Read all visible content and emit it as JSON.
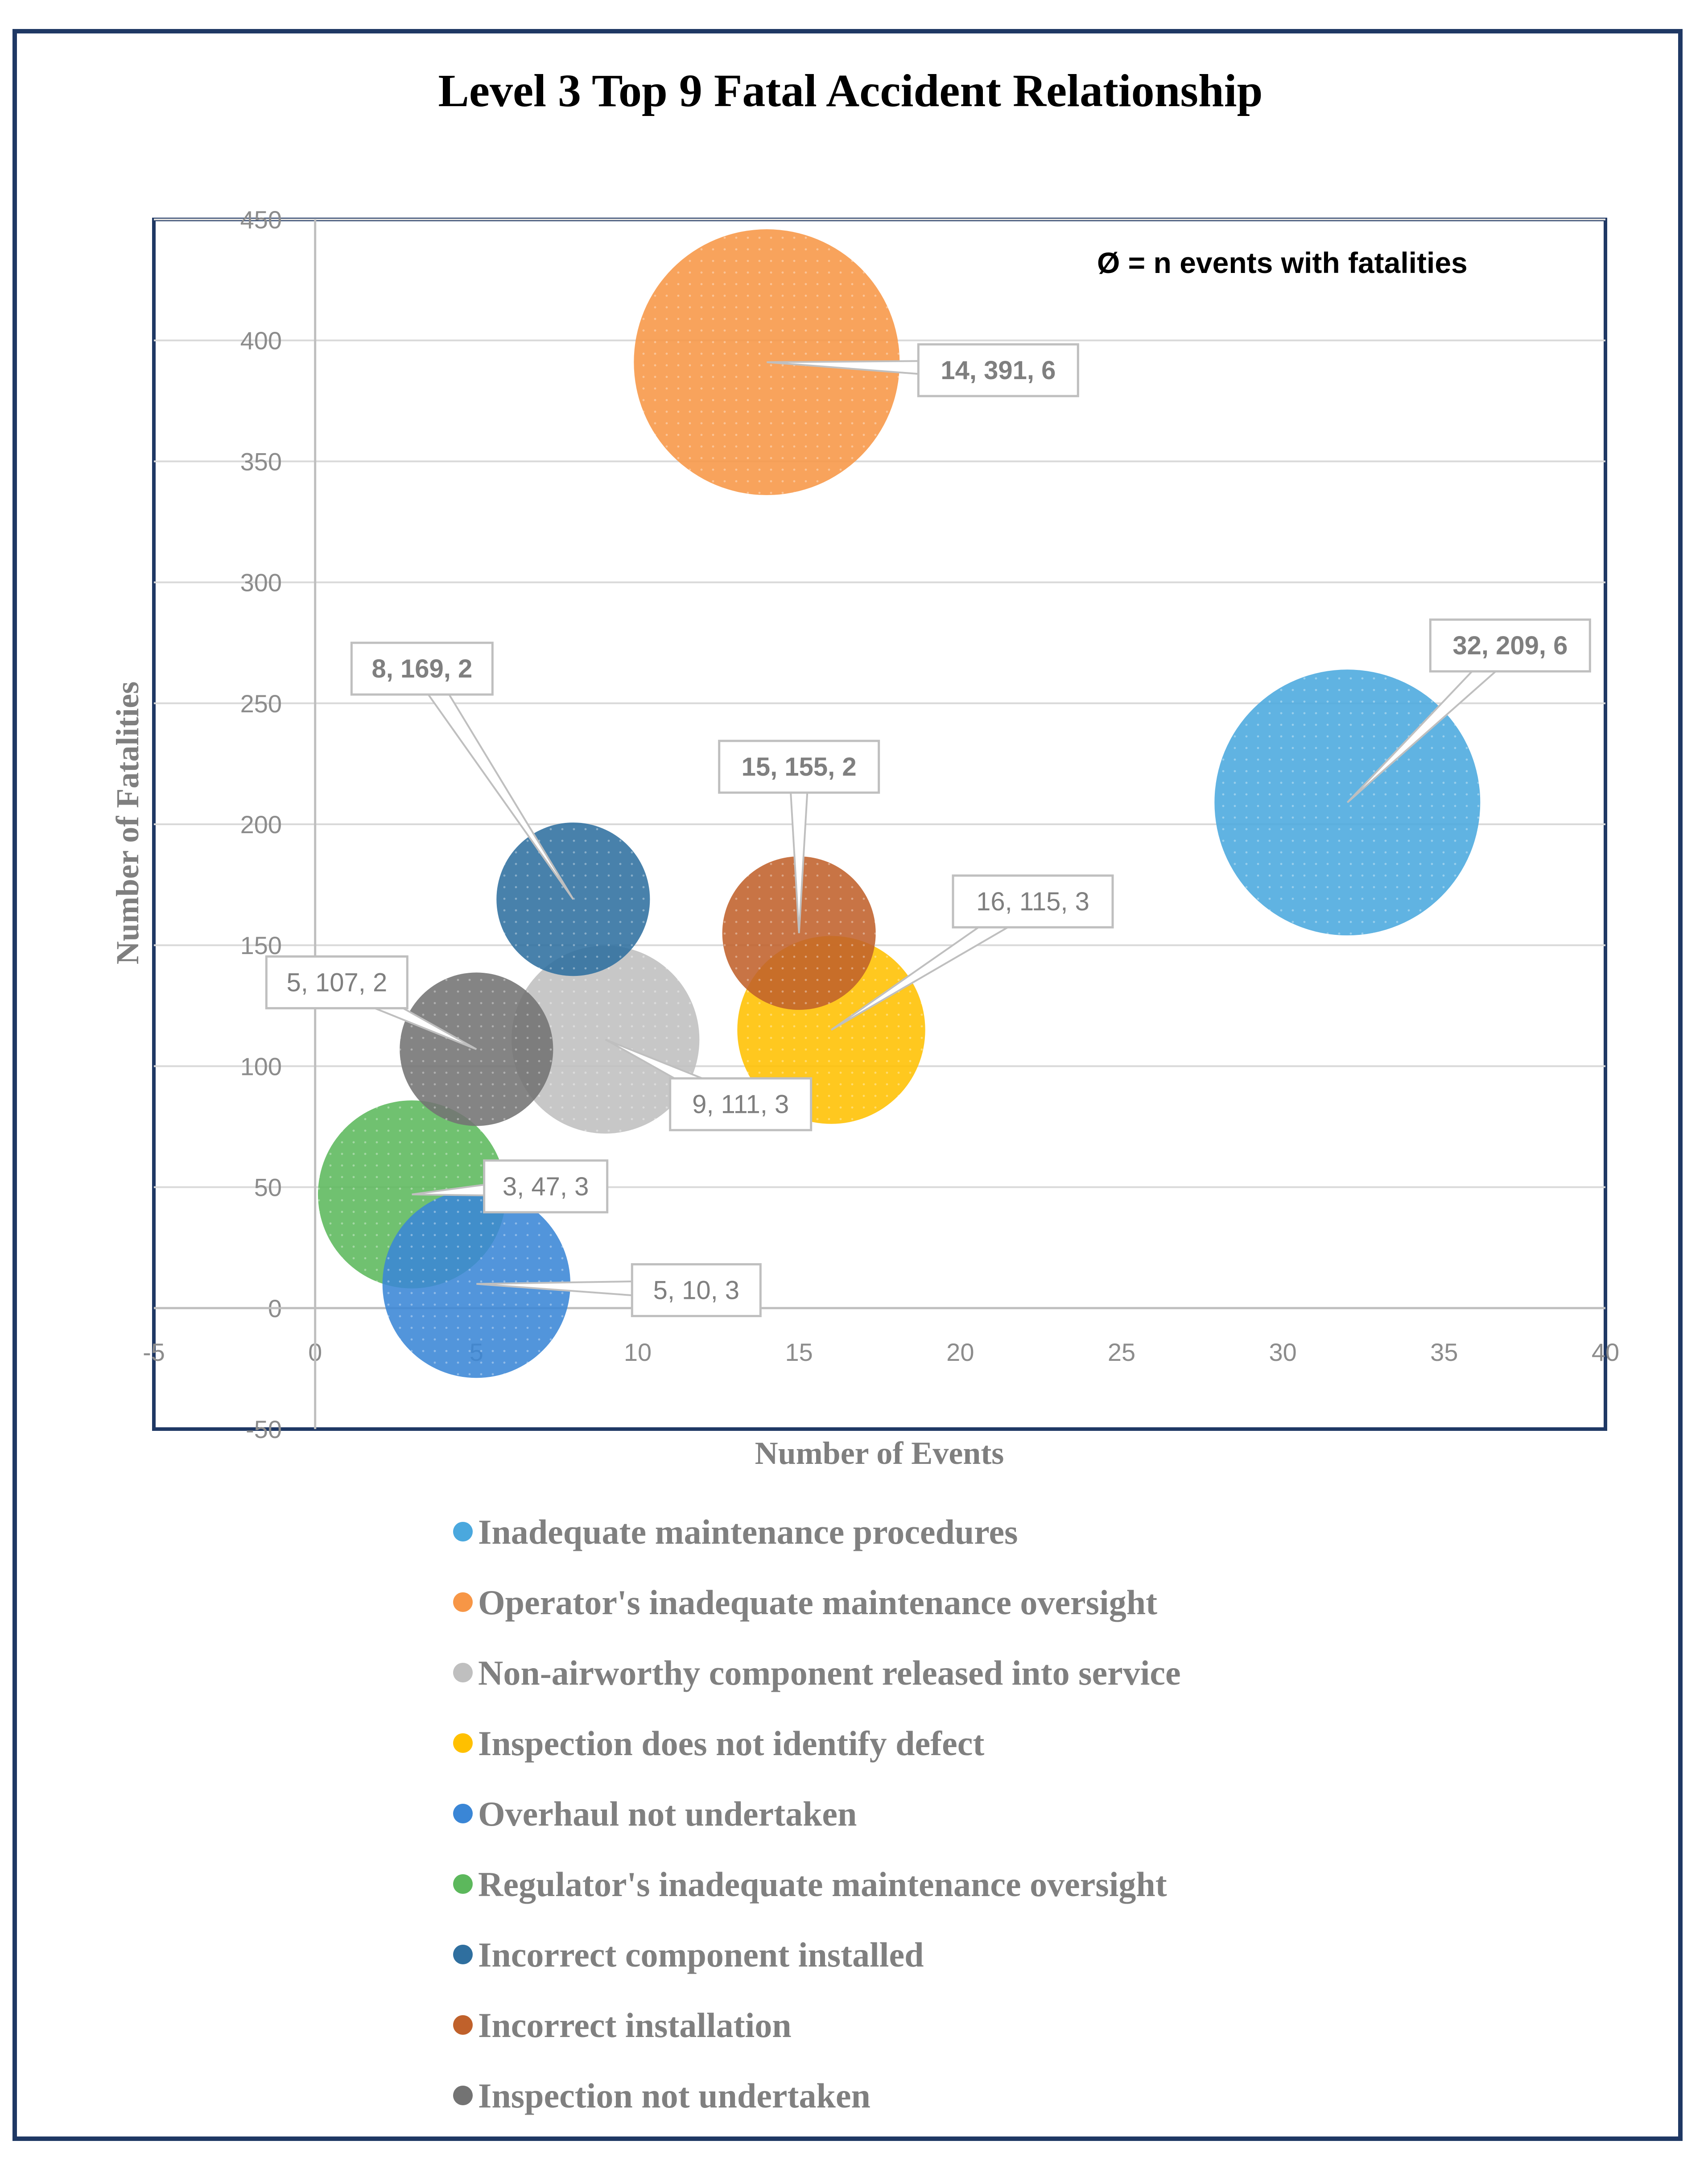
{
  "chart_data": {
    "type": "bubble",
    "title": "Level 3 Top 9 Fatal Accident Relationship",
    "xlabel": "Number of Events",
    "ylabel": "Number of Fatalities",
    "annotation": "Ø = n events with fatalities",
    "xlim": [
      -5,
      40
    ],
    "ylim": [
      -50,
      450
    ],
    "x_ticks": [
      -5,
      0,
      5,
      10,
      15,
      20,
      25,
      30,
      35,
      40
    ],
    "y_ticks": [
      -50,
      0,
      50,
      100,
      150,
      200,
      250,
      300,
      350,
      400,
      450
    ],
    "grid": "horizontal",
    "legend_position": "bottom",
    "series": [
      {
        "name": "Inadequate maintenance procedures",
        "x": 32,
        "y": 209,
        "size": 6,
        "label": "32, 209, 6",
        "color": "#4aa8de",
        "label_bold": true
      },
      {
        "name": "Operator's inadequate maintenance oversight",
        "x": 14,
        "y": 391,
        "size": 6,
        "label": "14, 391, 6",
        "color": "#f79646",
        "label_bold": true
      },
      {
        "name": "Non-airworthy component released into service",
        "x": 9,
        "y": 111,
        "size": 3,
        "label": "9, 111, 3",
        "color": "#bfbfbf",
        "label_bold": false
      },
      {
        "name": "Inspection does not identify defect",
        "x": 16,
        "y": 115,
        "size": 3,
        "label": "16, 115, 3",
        "color": "#ffc000",
        "label_bold": false
      },
      {
        "name": "Overhaul not undertaken",
        "x": 5,
        "y": 10,
        "size": 3,
        "label": "5, 10, 3",
        "color": "#3a86d6",
        "label_bold": false
      },
      {
        "name": "Regulator's inadequate maintenance oversight",
        "x": 3,
        "y": 47,
        "size": 3,
        "label": "3, 47, 3",
        "color": "#5cb85c",
        "label_bold": false
      },
      {
        "name": "Incorrect component installed",
        "x": 8,
        "y": 169,
        "size": 2,
        "label": "8, 169, 2",
        "color": "#2f6f9f",
        "label_bold": true
      },
      {
        "name": "Incorrect installation",
        "x": 15,
        "y": 155,
        "size": 2,
        "label": "15, 155, 2",
        "color": "#c0612b",
        "label_bold": true
      },
      {
        "name": "Inspection not undertaken",
        "x": 5,
        "y": 107,
        "size": 2,
        "label": "5, 107, 2",
        "color": "#737373",
        "label_bold": false
      }
    ]
  }
}
